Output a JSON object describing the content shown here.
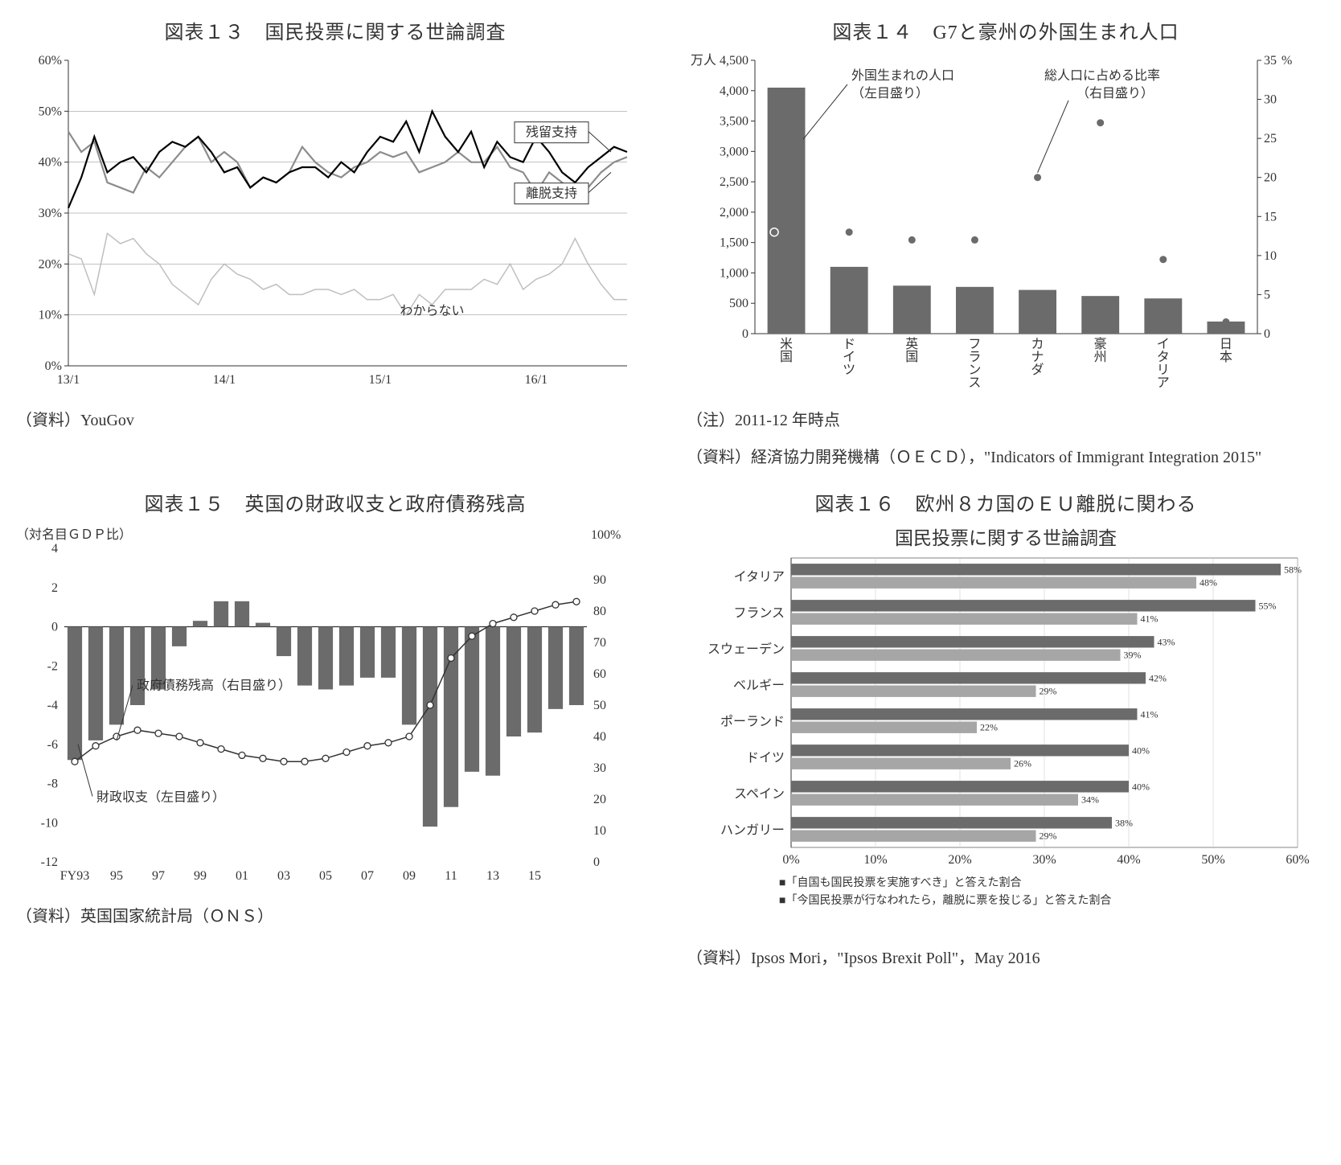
{
  "chart13": {
    "title": "図表１３　国民投票に関する世論調査",
    "source": "（資料）YouGov",
    "y": {
      "ticks": [
        0,
        10,
        20,
        30,
        40,
        50,
        60
      ],
      "labels": [
        "0%",
        "10%",
        "20%",
        "30%",
        "40%",
        "50%",
        "60%"
      ]
    },
    "x": {
      "labels": [
        "13/1",
        "14/1",
        "15/1",
        "16/1"
      ],
      "positions": [
        0,
        12,
        24,
        36
      ],
      "count": 44
    },
    "series_remain": {
      "label": "残留支持",
      "color": "#000000",
      "width": 2.2,
      "values": [
        31,
        37,
        45,
        38,
        40,
        41,
        38,
        42,
        44,
        43,
        45,
        42,
        38,
        39,
        35,
        37,
        36,
        38,
        39,
        39,
        37,
        40,
        38,
        42,
        45,
        44,
        48,
        42,
        50,
        45,
        42,
        46,
        39,
        44,
        41,
        40,
        45,
        42,
        38,
        36,
        39,
        41,
        43,
        42
      ]
    },
    "series_leave": {
      "label": "離脱支持",
      "color": "#8c8c8c",
      "width": 2.2,
      "values": [
        46,
        42,
        44,
        36,
        35,
        34,
        39,
        37,
        40,
        43,
        45,
        40,
        42,
        40,
        35,
        37,
        36,
        38,
        43,
        40,
        38,
        37,
        39,
        40,
        42,
        41,
        42,
        38,
        39,
        40,
        42,
        40,
        40,
        43,
        39,
        38,
        34,
        38,
        36,
        34,
        35,
        38,
        40,
        41
      ]
    },
    "series_dk": {
      "label": "わからない",
      "color": "#bfbfbf",
      "width": 1.5,
      "values": [
        22,
        21,
        14,
        26,
        24,
        25,
        22,
        20,
        16,
        14,
        12,
        17,
        20,
        18,
        17,
        15,
        16,
        14,
        14,
        15,
        15,
        14,
        15,
        13,
        13,
        14,
        10,
        14,
        12,
        15,
        15,
        15,
        17,
        16,
        20,
        15,
        17,
        18,
        20,
        25,
        20,
        16,
        13,
        13
      ]
    },
    "labels": {
      "remain": "残留支持",
      "leave": "離脱支持",
      "dk": "わからない"
    }
  },
  "chart14": {
    "title": "図表１４　G7と豪州の外国生まれ人口",
    "note": "（注）2011-12 年時点",
    "source": "（資料）経済協力開発機構（ＯＥＣＤ），\"Indicators of Immigrant Integration 2015\"",
    "y_left": {
      "unit": "万人",
      "ticks": [
        0,
        500,
        1000,
        1500,
        2000,
        2500,
        3000,
        3500,
        4000,
        4500
      ]
    },
    "y_right": {
      "unit": "%",
      "ticks": [
        0,
        5,
        10,
        15,
        20,
        25,
        30,
        35
      ]
    },
    "bar_color": "#6b6b6b",
    "dot_color": "#6b6b6b",
    "legend_bar": "外国生まれの人口（左目盛り）",
    "legend_dot": "総人口に占める比率（右目盛り）",
    "categories": [
      "米国",
      "ドイツ",
      "英国",
      "フランス",
      "カナダ",
      "豪州",
      "イタリア",
      "日本"
    ],
    "bar_values": [
      4050,
      1100,
      790,
      770,
      720,
      620,
      580,
      200
    ],
    "dot_values": [
      13,
      13,
      12,
      12,
      20,
      27,
      9.5,
      1.5
    ]
  },
  "chart15": {
    "title": "図表１５　英国の財政収支と政府債務残高",
    "subtitle": "（対名目ＧＤＰ比）",
    "source": "（資料）英国国家統計局（ＯＮＳ）",
    "x_prefix": "FY",
    "x_labels": [
      "93",
      "95",
      "97",
      "99",
      "01",
      "03",
      "05",
      "07",
      "09",
      "11",
      "13",
      "15"
    ],
    "y_left_ticks": [
      -12,
      -10,
      -8,
      -6,
      -4,
      -2,
      0,
      2,
      4
    ],
    "y_right_ticks": [
      0,
      10,
      20,
      30,
      40,
      50,
      60,
      70,
      80,
      90,
      100
    ],
    "y_right_unit": "100%",
    "bar_color": "#6b6b6b",
    "line_color": "#333333",
    "legend_bar": "財政収支（左目盛り）",
    "legend_line": "政府債務残高（右目盛り）",
    "bars": [
      -6.8,
      -5.8,
      -5,
      -4,
      -3.2,
      -1,
      0.3,
      1.3,
      1.3,
      0.2,
      -1.5,
      -3,
      -3.2,
      -3,
      -2.6,
      -2.6,
      -5,
      -10.2,
      -9.2,
      -7.4,
      -7.6,
      -5.6,
      -5.4,
      -4.2,
      -4
    ],
    "line": [
      32,
      37,
      40,
      42,
      41,
      40,
      38,
      36,
      34,
      33,
      32,
      32,
      33,
      35,
      37,
      38,
      40,
      50,
      65,
      72,
      76,
      78,
      80,
      82,
      83
    ]
  },
  "chart16": {
    "title": "図表１６　欧州８カ国のＥＵ離脱に関わる",
    "title2": "国民投票に関する世論調査",
    "source": "（資料）Ipsos Mori，\"Ipsos Brexit Poll\"，May 2016",
    "x_ticks": [
      0,
      10,
      20,
      30,
      40,
      50,
      60
    ],
    "x_labels": [
      "0%",
      "10%",
      "20%",
      "30%",
      "40%",
      "50%",
      "60%"
    ],
    "categories": [
      "イタリア",
      "フランス",
      "スウェーデン",
      "ベルギー",
      "ポーランド",
      "ドイツ",
      "スペイン",
      "ハンガリー"
    ],
    "bar1_color": "#6b6b6b",
    "bar2_color": "#a6a6a6",
    "bar1": [
      58,
      55,
      43,
      42,
      41,
      40,
      40,
      38
    ],
    "bar2": [
      48,
      41,
      39,
      29,
      22,
      26,
      34,
      29
    ],
    "legend1": "■「自国も国民投票を実施すべき」と答えた割合",
    "legend2": "■「今国民投票が行なわれたら，離脱に票を投じる」と答えた割合"
  }
}
